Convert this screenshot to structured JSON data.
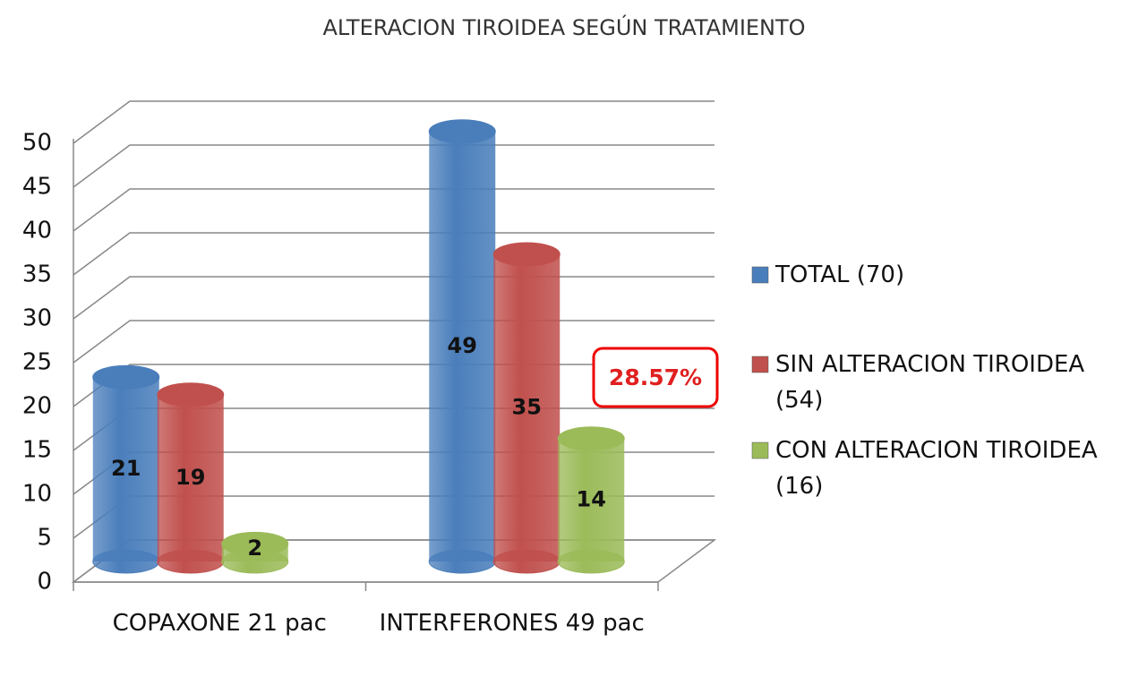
{
  "chart_data": {
    "type": "bar3d",
    "title": "ALTERACION TIROIDEA SEGÚN TRATAMIENTO",
    "categories": [
      "COPAXONE 21 pac",
      "INTERFERONES 49 pac"
    ],
    "series": [
      {
        "name": "TOTAL (70)",
        "color": "#4a7ebb",
        "values": [
          21,
          49
        ]
      },
      {
        "name": "SIN ALTERACION TIROIDEA (54)",
        "color": "#c0504d",
        "values": [
          19,
          35
        ]
      },
      {
        "name": "CON ALTERACION TIROIDEA (16)",
        "color": "#9bbb59",
        "values": [
          2,
          14
        ]
      }
    ],
    "ylim": [
      0,
      50
    ],
    "yticks": [
      0,
      5,
      10,
      15,
      20,
      25,
      30,
      35,
      40,
      45,
      50
    ],
    "grid": true,
    "legend": "right",
    "annotation": "28.57%"
  }
}
